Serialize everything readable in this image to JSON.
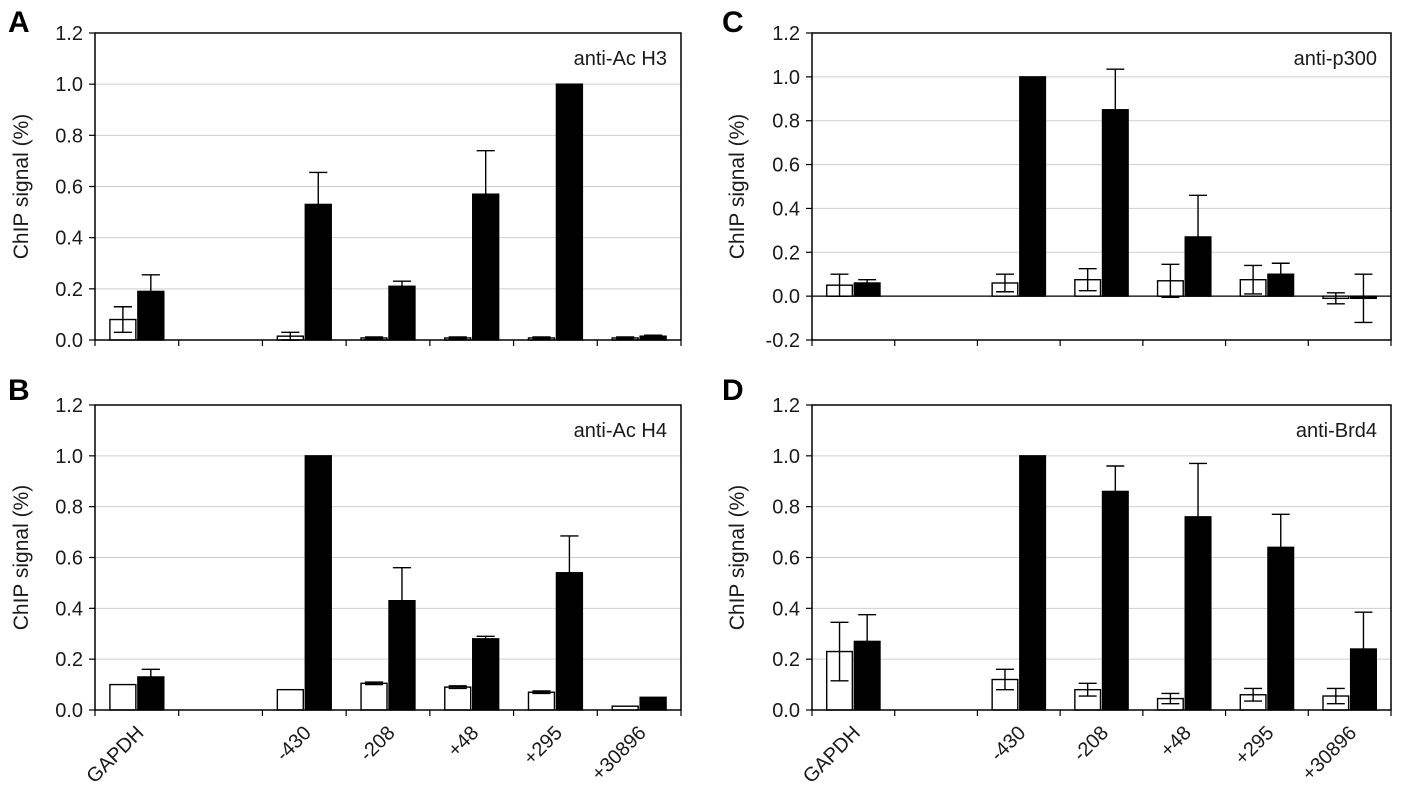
{
  "chart_data": [
    {
      "panel": "A",
      "type": "bar",
      "title": "anti-Ac H3",
      "xlabel": "",
      "ylabel": "ChIP signal (%)",
      "ylim": [
        0,
        1.2
      ],
      "yticks": [
        "0.0",
        "0.2",
        "0.4",
        "0.6",
        "0.8",
        "1.0",
        "1.2"
      ],
      "categories": [
        "GAPDH",
        "",
        "-430",
        "-208",
        "+48",
        "+295",
        "+30896"
      ],
      "show_category_labels": false,
      "grid": true,
      "series": [
        {
          "fill": "#ffffff",
          "values": [
            0.08,
            null,
            0.015,
            0.008,
            0.008,
            0.008,
            0.008
          ],
          "errors": [
            0.05,
            null,
            0.015,
            0.004,
            0.004,
            0.004,
            0.004
          ]
        },
        {
          "fill": "#000000",
          "values": [
            0.19,
            null,
            0.53,
            0.21,
            0.57,
            1.0,
            0.015
          ],
          "errors": [
            0.065,
            null,
            0.125,
            0.02,
            0.17,
            0,
            0.004
          ]
        }
      ]
    },
    {
      "panel": "B",
      "type": "bar",
      "title": "anti-Ac H4",
      "xlabel": "",
      "ylabel": "ChIP signal (%)",
      "ylim": [
        0,
        1.2
      ],
      "yticks": [
        "0.0",
        "0.2",
        "0.4",
        "0.6",
        "0.8",
        "1.0",
        "1.2"
      ],
      "categories": [
        "GAPDH",
        "",
        "-430",
        "-208",
        "+48",
        "+295",
        "+30896"
      ],
      "show_category_labels": true,
      "grid": true,
      "series": [
        {
          "fill": "#ffffff",
          "values": [
            0.1,
            null,
            0.08,
            0.105,
            0.09,
            0.07,
            0.015
          ],
          "errors": [
            0,
            null,
            0,
            0.005,
            0.005,
            0.005,
            0
          ]
        },
        {
          "fill": "#000000",
          "values": [
            0.13,
            null,
            1.0,
            0.43,
            0.28,
            0.54,
            0.05
          ],
          "errors": [
            0.03,
            null,
            0,
            0.13,
            0.01,
            0.145,
            0
          ]
        }
      ]
    },
    {
      "panel": "C",
      "type": "bar",
      "title": "anti-p300",
      "xlabel": "",
      "ylabel": "ChIP signal (%)",
      "ylim": [
        -0.2,
        1.2
      ],
      "yticks": [
        "-0.2",
        "0.0",
        "0.2",
        "0.4",
        "0.6",
        "0.8",
        "1.0",
        "1.2"
      ],
      "categories": [
        "GAPDH",
        "",
        "-430",
        "-208",
        "+48",
        "+295",
        "+30896"
      ],
      "show_category_labels": false,
      "grid": true,
      "series": [
        {
          "fill": "#ffffff",
          "values": [
            0.05,
            null,
            0.06,
            0.075,
            0.07,
            0.075,
            -0.01
          ],
          "errors": [
            0.05,
            null,
            0.04,
            0.05,
            0.075,
            0.065,
            0.025
          ]
        },
        {
          "fill": "#000000",
          "values": [
            0.06,
            null,
            1.0,
            0.85,
            0.27,
            0.1,
            -0.01
          ],
          "errors": [
            0.015,
            null,
            0,
            0.185,
            0.19,
            0.05,
            0.11
          ]
        }
      ]
    },
    {
      "panel": "D",
      "type": "bar",
      "title": "anti-Brd4",
      "xlabel": "",
      "ylabel": "ChIP signal (%)",
      "ylim": [
        0,
        1.2
      ],
      "yticks": [
        "0.0",
        "0.2",
        "0.4",
        "0.6",
        "0.8",
        "1.0",
        "1.2"
      ],
      "categories": [
        "GAPDH",
        "",
        "-430",
        "-208",
        "+48",
        "+295",
        "+30896"
      ],
      "show_category_labels": true,
      "grid": true,
      "series": [
        {
          "fill": "#ffffff",
          "values": [
            0.23,
            null,
            0.12,
            0.08,
            0.045,
            0.06,
            0.055
          ],
          "errors": [
            0.115,
            null,
            0.04,
            0.025,
            0.02,
            0.025,
            0.03
          ]
        },
        {
          "fill": "#000000",
          "values": [
            0.27,
            null,
            1.0,
            0.86,
            0.76,
            0.64,
            0.24
          ],
          "errors": [
            0.105,
            null,
            0,
            0.1,
            0.21,
            0.13,
            0.145
          ]
        }
      ]
    }
  ]
}
